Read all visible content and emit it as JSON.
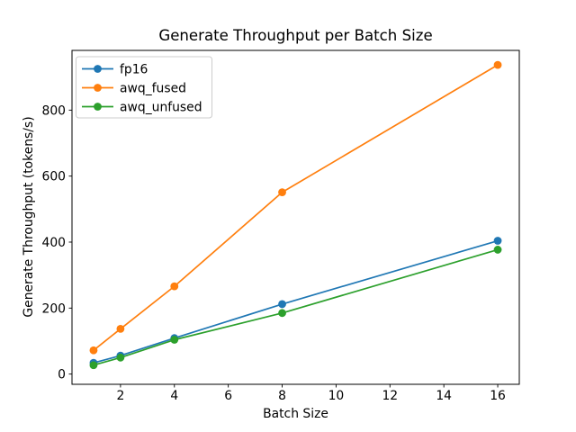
{
  "chart_data": {
    "type": "line",
    "title": "Generate Throughput per Batch Size",
    "xlabel": "Batch Size",
    "ylabel": "Generate Throughput (tokens/s)",
    "x": [
      1,
      2,
      4,
      8,
      16
    ],
    "series": [
      {
        "name": "fp16",
        "color": "#1f77b4",
        "values": [
          34,
          56,
          109,
          212,
          404
        ]
      },
      {
        "name": "awq_fused",
        "color": "#ff7f0e",
        "values": [
          72,
          137,
          266,
          551,
          937
        ]
      },
      {
        "name": "awq_unfused",
        "color": "#2ca02c",
        "values": [
          27,
          50,
          104,
          185,
          377
        ]
      }
    ],
    "xticks": [
      2,
      4,
      6,
      8,
      10,
      12,
      14,
      16
    ],
    "yticks": [
      0,
      200,
      400,
      600,
      800
    ],
    "xlim": [
      0.2,
      16.8
    ],
    "ylim": [
      -31,
      981
    ],
    "legend_position": "upper left",
    "grid": false,
    "marker": "o",
    "axis_color": "#000000",
    "legend_border_color": "#cccccc",
    "background": "#ffffff"
  }
}
